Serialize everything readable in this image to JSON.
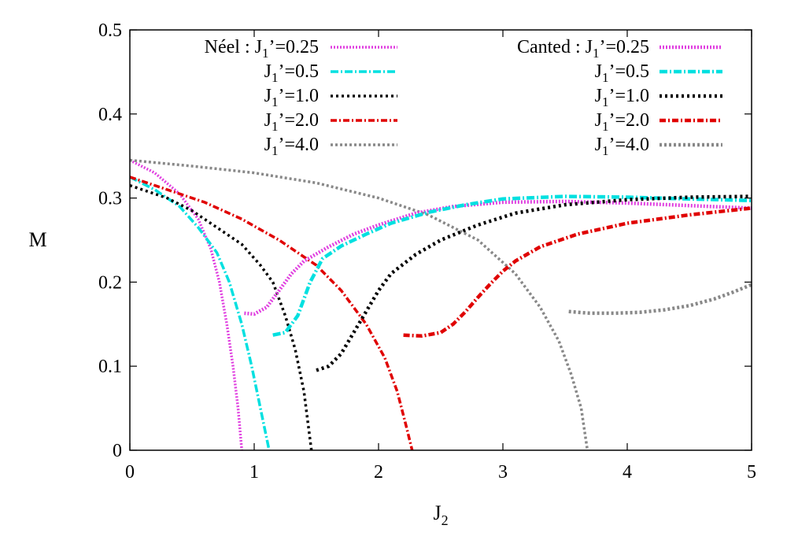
{
  "chart_data": {
    "type": "line",
    "xlabel": "J",
    "xlabel_sub": "2",
    "ylabel": "M",
    "xlim": [
      0,
      5
    ],
    "ylim": [
      0,
      0.5
    ],
    "xticks": [
      0,
      1,
      2,
      3,
      4,
      5
    ],
    "yticks": [
      0,
      0.1,
      0.2,
      0.3,
      0.4,
      0.5
    ],
    "xtick_labels": [
      "0",
      "1",
      "2",
      "3",
      "4",
      "5"
    ],
    "ytick_labels": [
      "0",
      "0.1",
      "0.2",
      "0.3",
      "0.4",
      "0.5"
    ],
    "grid": false,
    "legend_placement": "top",
    "legend": {
      "neel": [
        {
          "prefix": "Néel : ",
          "j": "J",
          "sub": "1",
          "suffix": "’=0.25"
        },
        {
          "prefix": "",
          "j": "J",
          "sub": "1",
          "suffix": "’=0.5"
        },
        {
          "prefix": "",
          "j": "J",
          "sub": "1",
          "suffix": "’=1.0"
        },
        {
          "prefix": "",
          "j": "J",
          "sub": "1",
          "suffix": "’=2.0"
        },
        {
          "prefix": "",
          "j": "J",
          "sub": "1",
          "suffix": "’=4.0"
        }
      ],
      "canted": [
        {
          "prefix": "Canted : ",
          "j": "J",
          "sub": "1",
          "suffix": "’=0.25"
        },
        {
          "prefix": "",
          "j": "J",
          "sub": "1",
          "suffix": "’=0.5"
        },
        {
          "prefix": "",
          "j": "J",
          "sub": "1",
          "suffix": "’=1.0"
        },
        {
          "prefix": "",
          "j": "J",
          "sub": "1",
          "suffix": "’=2.0"
        },
        {
          "prefix": "",
          "j": "J",
          "sub": "1",
          "suffix": "’=4.0"
        }
      ]
    },
    "series": [
      {
        "group": "neel",
        "color": "#e040e0",
        "dash": "2,2",
        "points": [
          [
            0,
            0.345
          ],
          [
            0.2,
            0.33
          ],
          [
            0.4,
            0.305
          ],
          [
            0.55,
            0.275
          ],
          [
            0.65,
            0.24
          ],
          [
            0.72,
            0.2
          ],
          [
            0.78,
            0.15
          ],
          [
            0.83,
            0.1
          ],
          [
            0.87,
            0.05
          ],
          [
            0.9,
            0
          ]
        ]
      },
      {
        "group": "neel",
        "color": "#00e0e0",
        "dash": "10,3,2,3",
        "points": [
          [
            0,
            0.325
          ],
          [
            0.2,
            0.31
          ],
          [
            0.4,
            0.29
          ],
          [
            0.55,
            0.265
          ],
          [
            0.7,
            0.235
          ],
          [
            0.8,
            0.2
          ],
          [
            0.9,
            0.15
          ],
          [
            0.98,
            0.1
          ],
          [
            1.05,
            0.05
          ],
          [
            1.12,
            0
          ]
        ]
      },
      {
        "group": "neel",
        "color": "#000000",
        "dash": "3,4",
        "points": [
          [
            0,
            0.315
          ],
          [
            0.3,
            0.3
          ],
          [
            0.5,
            0.285
          ],
          [
            0.7,
            0.265
          ],
          [
            0.9,
            0.245
          ],
          [
            1.05,
            0.22
          ],
          [
            1.15,
            0.2
          ],
          [
            1.25,
            0.16
          ],
          [
            1.33,
            0.12
          ],
          [
            1.4,
            0.07
          ],
          [
            1.46,
            0
          ]
        ]
      },
      {
        "group": "neel",
        "color": "#e00000",
        "dash": "8,3,2,3",
        "points": [
          [
            0,
            0.325
          ],
          [
            0.3,
            0.31
          ],
          [
            0.6,
            0.295
          ],
          [
            0.9,
            0.275
          ],
          [
            1.2,
            0.25
          ],
          [
            1.5,
            0.22
          ],
          [
            1.7,
            0.19
          ],
          [
            1.9,
            0.15
          ],
          [
            2.05,
            0.11
          ],
          [
            2.15,
            0.07
          ],
          [
            2.22,
            0.03
          ],
          [
            2.27,
            0
          ]
        ]
      },
      {
        "group": "neel",
        "color": "#888888",
        "dash": "3,3",
        "points": [
          [
            0,
            0.345
          ],
          [
            0.5,
            0.338
          ],
          [
            1,
            0.33
          ],
          [
            1.5,
            0.318
          ],
          [
            2,
            0.3
          ],
          [
            2.4,
            0.28
          ],
          [
            2.8,
            0.25
          ],
          [
            3.1,
            0.21
          ],
          [
            3.3,
            0.17
          ],
          [
            3.45,
            0.13
          ],
          [
            3.55,
            0.09
          ],
          [
            3.63,
            0.05
          ],
          [
            3.68,
            0
          ]
        ]
      },
      {
        "group": "canted",
        "color": "#e040e0",
        "dash": "2,2",
        "points": [
          [
            0.92,
            0.163
          ],
          [
            1.0,
            0.162
          ],
          [
            1.1,
            0.17
          ],
          [
            1.2,
            0.19
          ],
          [
            1.3,
            0.21
          ],
          [
            1.4,
            0.225
          ],
          [
            1.6,
            0.242
          ],
          [
            1.8,
            0.257
          ],
          [
            2,
            0.268
          ],
          [
            2.3,
            0.282
          ],
          [
            2.6,
            0.29
          ],
          [
            3,
            0.295
          ],
          [
            3.5,
            0.296
          ],
          [
            4,
            0.294
          ],
          [
            4.5,
            0.291
          ],
          [
            5,
            0.288
          ]
        ]
      },
      {
        "group": "canted",
        "color": "#00e0e0",
        "dash": "10,3,2,3",
        "points": [
          [
            1.15,
            0.137
          ],
          [
            1.25,
            0.14
          ],
          [
            1.35,
            0.16
          ],
          [
            1.45,
            0.2
          ],
          [
            1.55,
            0.228
          ],
          [
            1.7,
            0.243
          ],
          [
            1.9,
            0.257
          ],
          [
            2.1,
            0.27
          ],
          [
            2.4,
            0.283
          ],
          [
            2.7,
            0.292
          ],
          [
            3,
            0.299
          ],
          [
            3.5,
            0.302
          ],
          [
            4,
            0.301
          ],
          [
            4.5,
            0.299
          ],
          [
            5,
            0.297
          ]
        ]
      },
      {
        "group": "canted",
        "color": "#000000",
        "dash": "3,4",
        "points": [
          [
            1.5,
            0.095
          ],
          [
            1.6,
            0.1
          ],
          [
            1.7,
            0.115
          ],
          [
            1.8,
            0.14
          ],
          [
            1.9,
            0.165
          ],
          [
            2,
            0.19
          ],
          [
            2.1,
            0.21
          ],
          [
            2.3,
            0.233
          ],
          [
            2.5,
            0.25
          ],
          [
            2.8,
            0.268
          ],
          [
            3.1,
            0.282
          ],
          [
            3.5,
            0.292
          ],
          [
            4,
            0.298
          ],
          [
            4.5,
            0.301
          ],
          [
            5,
            0.302
          ]
        ]
      },
      {
        "group": "canted",
        "color": "#e00000",
        "dash": "8,3,2,3",
        "points": [
          [
            2.2,
            0.137
          ],
          [
            2.35,
            0.136
          ],
          [
            2.5,
            0.14
          ],
          [
            2.6,
            0.15
          ],
          [
            2.7,
            0.165
          ],
          [
            2.8,
            0.182
          ],
          [
            2.9,
            0.198
          ],
          [
            3,
            0.213
          ],
          [
            3.1,
            0.225
          ],
          [
            3.3,
            0.242
          ],
          [
            3.6,
            0.257
          ],
          [
            4,
            0.27
          ],
          [
            4.5,
            0.28
          ],
          [
            5,
            0.288
          ]
        ]
      },
      {
        "group": "canted",
        "color": "#888888",
        "dash": "3,3",
        "points": [
          [
            3.53,
            0.165
          ],
          [
            3.7,
            0.163
          ],
          [
            3.9,
            0.163
          ],
          [
            4.1,
            0.164
          ],
          [
            4.3,
            0.167
          ],
          [
            4.5,
            0.172
          ],
          [
            4.7,
            0.18
          ],
          [
            4.85,
            0.188
          ],
          [
            5,
            0.197
          ]
        ]
      }
    ]
  }
}
